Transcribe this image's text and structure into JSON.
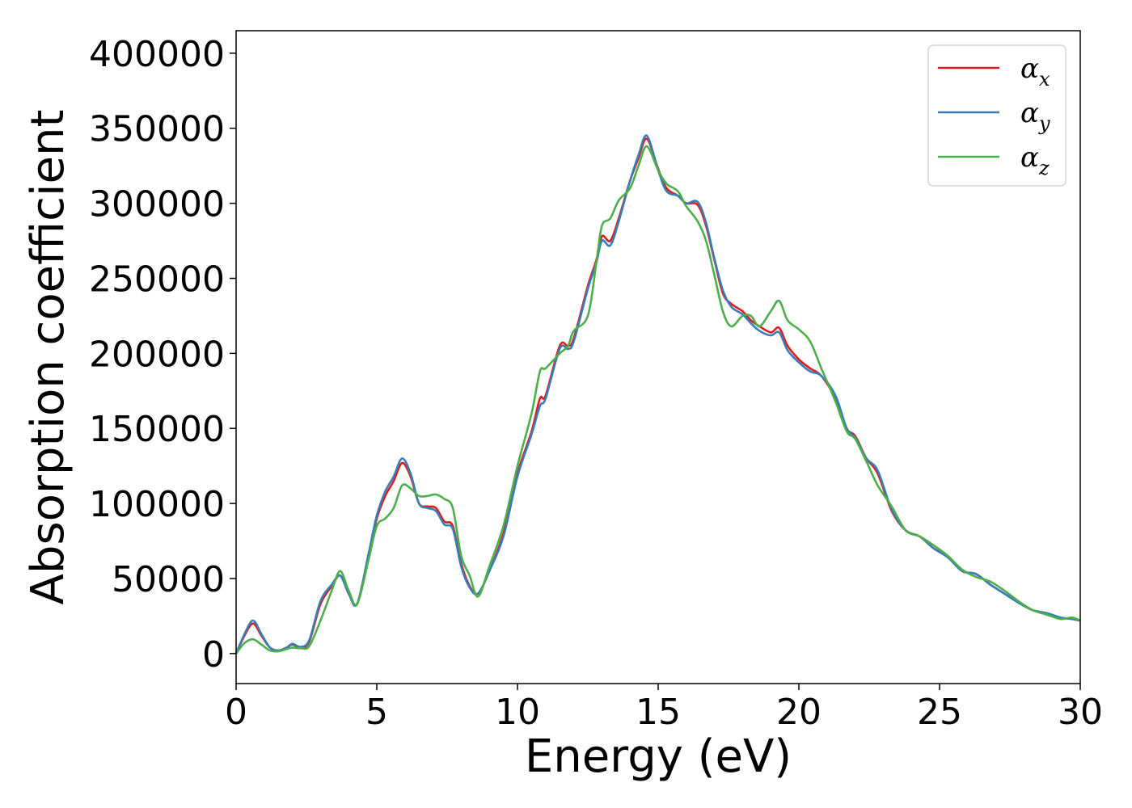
{
  "chart_data": {
    "type": "line",
    "xlabel": "Energy (eV)",
    "ylabel": "Absorption coefficient",
    "xlim": [
      0,
      30
    ],
    "ylim": [
      -20000,
      415000
    ],
    "xticks": [
      0,
      5,
      10,
      15,
      20,
      25,
      30
    ],
    "xtick_labels": [
      "0",
      "5",
      "10",
      "15",
      "20",
      "25",
      "30"
    ],
    "yticks": [
      0,
      50000,
      100000,
      150000,
      200000,
      250000,
      300000,
      350000,
      400000
    ],
    "ytick_labels": [
      "0",
      "50000",
      "100000",
      "150000",
      "200000",
      "250000",
      "300000",
      "350000",
      "400000"
    ],
    "grid": false,
    "legend_position": "top-right",
    "series": [
      {
        "name": "x",
        "label_symbol": "α",
        "label_subscript": "x",
        "color": "#e41a1c",
        "points": [
          [
            0,
            0
          ],
          [
            0.3,
            12000
          ],
          [
            0.6,
            20000
          ],
          [
            0.9,
            12000
          ],
          [
            1.2,
            4000
          ],
          [
            1.5,
            2000
          ],
          [
            1.8,
            4000
          ],
          [
            2.0,
            6000
          ],
          [
            2.3,
            4000
          ],
          [
            2.6,
            8000
          ],
          [
            3.0,
            33000
          ],
          [
            3.4,
            45000
          ],
          [
            3.7,
            52000
          ],
          [
            4.0,
            40000
          ],
          [
            4.3,
            33000
          ],
          [
            4.7,
            65000
          ],
          [
            5.0,
            90000
          ],
          [
            5.3,
            105000
          ],
          [
            5.6,
            115000
          ],
          [
            5.9,
            127000
          ],
          [
            6.2,
            118000
          ],
          [
            6.5,
            100000
          ],
          [
            6.8,
            98000
          ],
          [
            7.1,
            97000
          ],
          [
            7.4,
            88000
          ],
          [
            7.7,
            85000
          ],
          [
            8.0,
            60000
          ],
          [
            8.3,
            45000
          ],
          [
            8.6,
            40000
          ],
          [
            9.0,
            55000
          ],
          [
            9.5,
            80000
          ],
          [
            10.0,
            120000
          ],
          [
            10.5,
            148000
          ],
          [
            10.8,
            170000
          ],
          [
            11.0,
            172000
          ],
          [
            11.5,
            205000
          ],
          [
            11.8,
            205000
          ],
          [
            12.0,
            210000
          ],
          [
            12.5,
            245000
          ],
          [
            12.8,
            262000
          ],
          [
            13.0,
            278000
          ],
          [
            13.3,
            275000
          ],
          [
            13.6,
            290000
          ],
          [
            14.0,
            315000
          ],
          [
            14.3,
            330000
          ],
          [
            14.6,
            343000
          ],
          [
            15.0,
            323000
          ],
          [
            15.3,
            310000
          ],
          [
            15.7,
            305000
          ],
          [
            16.0,
            300000
          ],
          [
            16.4,
            299000
          ],
          [
            16.7,
            285000
          ],
          [
            17.0,
            262000
          ],
          [
            17.3,
            240000
          ],
          [
            17.6,
            233000
          ],
          [
            18.0,
            228000
          ],
          [
            18.3,
            222000
          ],
          [
            18.6,
            218000
          ],
          [
            19.0,
            214000
          ],
          [
            19.3,
            217000
          ],
          [
            19.6,
            205000
          ],
          [
            20.0,
            196000
          ],
          [
            20.4,
            190000
          ],
          [
            20.8,
            185000
          ],
          [
            21.3,
            170000
          ],
          [
            21.7,
            150000
          ],
          [
            22.0,
            145000
          ],
          [
            22.4,
            130000
          ],
          [
            22.8,
            120000
          ],
          [
            23.3,
            95000
          ],
          [
            23.8,
            82000
          ],
          [
            24.3,
            78000
          ],
          [
            24.8,
            70000
          ],
          [
            25.3,
            65000
          ],
          [
            25.8,
            55000
          ],
          [
            26.3,
            53000
          ],
          [
            26.8,
            46000
          ],
          [
            27.3,
            40000
          ],
          [
            27.8,
            34000
          ],
          [
            28.3,
            29000
          ],
          [
            28.8,
            27000
          ],
          [
            29.3,
            24000
          ],
          [
            29.7,
            23000
          ],
          [
            30,
            22000
          ]
        ]
      },
      {
        "name": "y",
        "label_symbol": "α",
        "label_subscript": "y",
        "color": "#377eb8",
        "points": [
          [
            0,
            0
          ],
          [
            0.3,
            13000
          ],
          [
            0.6,
            22000
          ],
          [
            0.9,
            13000
          ],
          [
            1.2,
            4000
          ],
          [
            1.5,
            2000
          ],
          [
            1.8,
            4000
          ],
          [
            2.0,
            6500
          ],
          [
            2.3,
            4500
          ],
          [
            2.6,
            9000
          ],
          [
            3.0,
            35000
          ],
          [
            3.4,
            46000
          ],
          [
            3.7,
            52000
          ],
          [
            4.0,
            40000
          ],
          [
            4.3,
            33000
          ],
          [
            4.7,
            66000
          ],
          [
            5.0,
            92000
          ],
          [
            5.3,
            108000
          ],
          [
            5.6,
            118000
          ],
          [
            5.9,
            130000
          ],
          [
            6.2,
            120000
          ],
          [
            6.5,
            100000
          ],
          [
            6.8,
            97000
          ],
          [
            7.1,
            95000
          ],
          [
            7.4,
            86000
          ],
          [
            7.7,
            83000
          ],
          [
            8.0,
            58000
          ],
          [
            8.3,
            44000
          ],
          [
            8.6,
            40000
          ],
          [
            9.0,
            55000
          ],
          [
            9.5,
            78000
          ],
          [
            10.0,
            118000
          ],
          [
            10.5,
            146000
          ],
          [
            10.8,
            165000
          ],
          [
            11.0,
            170000
          ],
          [
            11.5,
            203000
          ],
          [
            11.8,
            203000
          ],
          [
            12.0,
            208000
          ],
          [
            12.5,
            243000
          ],
          [
            12.8,
            260000
          ],
          [
            13.0,
            275000
          ],
          [
            13.3,
            272000
          ],
          [
            13.6,
            288000
          ],
          [
            14.0,
            315000
          ],
          [
            14.3,
            332000
          ],
          [
            14.6,
            345000
          ],
          [
            15.0,
            322000
          ],
          [
            15.3,
            308000
          ],
          [
            15.7,
            305000
          ],
          [
            16.0,
            300000
          ],
          [
            16.4,
            301000
          ],
          [
            16.7,
            287000
          ],
          [
            17.0,
            263000
          ],
          [
            17.3,
            242000
          ],
          [
            17.6,
            231000
          ],
          [
            18.0,
            226000
          ],
          [
            18.3,
            220000
          ],
          [
            18.6,
            215000
          ],
          [
            19.0,
            212000
          ],
          [
            19.3,
            214000
          ],
          [
            19.6,
            202000
          ],
          [
            20.0,
            194000
          ],
          [
            20.4,
            188000
          ],
          [
            20.8,
            185000
          ],
          [
            21.3,
            172000
          ],
          [
            21.7,
            150000
          ],
          [
            22.0,
            144000
          ],
          [
            22.4,
            130000
          ],
          [
            22.8,
            122000
          ],
          [
            23.3,
            96000
          ],
          [
            23.8,
            82000
          ],
          [
            24.3,
            78000
          ],
          [
            24.8,
            70000
          ],
          [
            25.3,
            64000
          ],
          [
            25.8,
            55000
          ],
          [
            26.3,
            53000
          ],
          [
            26.8,
            46000
          ],
          [
            27.3,
            40000
          ],
          [
            27.8,
            34000
          ],
          [
            28.3,
            29000
          ],
          [
            28.8,
            27000
          ],
          [
            29.3,
            24000
          ],
          [
            29.7,
            23000
          ],
          [
            30,
            22000
          ]
        ]
      },
      {
        "name": "z",
        "label_symbol": "α",
        "label_subscript": "z",
        "color": "#4daf4a",
        "points": [
          [
            0,
            0
          ],
          [
            0.3,
            7000
          ],
          [
            0.6,
            9500
          ],
          [
            0.9,
            6000
          ],
          [
            1.2,
            2000
          ],
          [
            1.5,
            1500
          ],
          [
            1.8,
            3000
          ],
          [
            2.0,
            4000
          ],
          [
            2.3,
            3500
          ],
          [
            2.6,
            5000
          ],
          [
            3.0,
            22000
          ],
          [
            3.4,
            42000
          ],
          [
            3.7,
            55000
          ],
          [
            4.0,
            42000
          ],
          [
            4.3,
            33000
          ],
          [
            4.7,
            62000
          ],
          [
            5.0,
            85000
          ],
          [
            5.3,
            90000
          ],
          [
            5.6,
            97000
          ],
          [
            5.9,
            112000
          ],
          [
            6.2,
            110000
          ],
          [
            6.5,
            105000
          ],
          [
            6.8,
            105000
          ],
          [
            7.1,
            106000
          ],
          [
            7.4,
            103000
          ],
          [
            7.7,
            97000
          ],
          [
            8.0,
            65000
          ],
          [
            8.3,
            52000
          ],
          [
            8.6,
            38000
          ],
          [
            9.0,
            58000
          ],
          [
            9.5,
            85000
          ],
          [
            10.0,
            125000
          ],
          [
            10.5,
            160000
          ],
          [
            10.8,
            188000
          ],
          [
            11.0,
            190000
          ],
          [
            11.5,
            200000
          ],
          [
            11.8,
            205000
          ],
          [
            12.0,
            215000
          ],
          [
            12.5,
            225000
          ],
          [
            12.8,
            260000
          ],
          [
            13.0,
            285000
          ],
          [
            13.3,
            290000
          ],
          [
            13.6,
            302000
          ],
          [
            14.0,
            310000
          ],
          [
            14.3,
            325000
          ],
          [
            14.6,
            338000
          ],
          [
            15.0,
            322000
          ],
          [
            15.3,
            313000
          ],
          [
            15.7,
            308000
          ],
          [
            16.0,
            298000
          ],
          [
            16.4,
            288000
          ],
          [
            16.7,
            275000
          ],
          [
            17.0,
            252000
          ],
          [
            17.3,
            228000
          ],
          [
            17.6,
            218000
          ],
          [
            18.0,
            225000
          ],
          [
            18.3,
            225000
          ],
          [
            18.6,
            218000
          ],
          [
            19.0,
            228000
          ],
          [
            19.3,
            235000
          ],
          [
            19.6,
            222000
          ],
          [
            20.0,
            216000
          ],
          [
            20.4,
            208000
          ],
          [
            20.8,
            190000
          ],
          [
            21.3,
            168000
          ],
          [
            21.7,
            148000
          ],
          [
            22.0,
            143000
          ],
          [
            22.4,
            128000
          ],
          [
            22.8,
            112000
          ],
          [
            23.3,
            98000
          ],
          [
            23.8,
            82000
          ],
          [
            24.3,
            78000
          ],
          [
            24.8,
            72000
          ],
          [
            25.3,
            65000
          ],
          [
            25.8,
            56000
          ],
          [
            26.3,
            51000
          ],
          [
            26.8,
            48000
          ],
          [
            27.3,
            42000
          ],
          [
            27.8,
            35000
          ],
          [
            28.3,
            29000
          ],
          [
            28.8,
            26000
          ],
          [
            29.3,
            23000
          ],
          [
            29.7,
            24000
          ],
          [
            30,
            22000
          ]
        ]
      }
    ]
  }
}
